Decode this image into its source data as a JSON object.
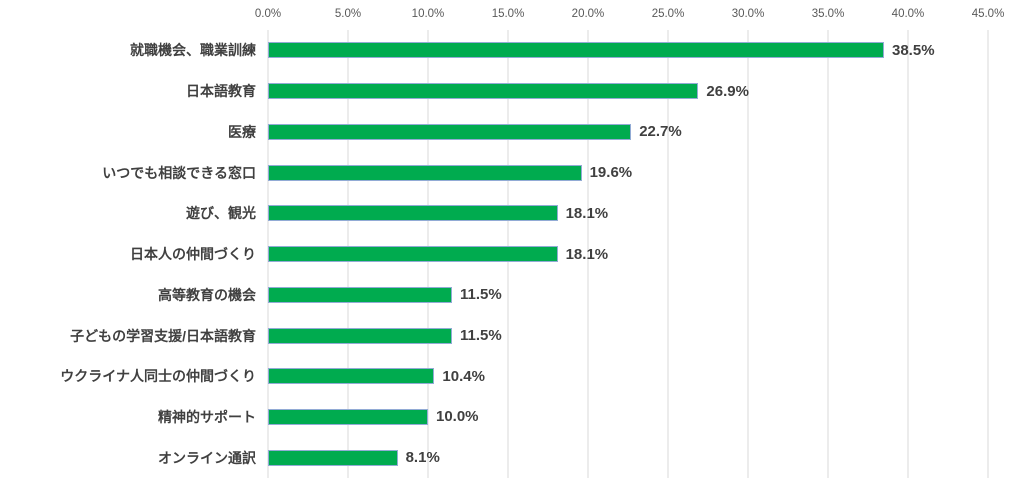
{
  "colors": {
    "bar_fill": "#00AB4F",
    "bar_border": "#92ABD5",
    "grid": "#D9D9D9",
    "axis_label": "#595959",
    "text": "#404040",
    "background": "#FFFFFF"
  },
  "axis": {
    "ticks": [
      "0.0%",
      "5.0%",
      "10.0%",
      "15.0%",
      "20.0%",
      "25.0%",
      "30.0%",
      "35.0%",
      "40.0%",
      "45.0%"
    ],
    "min": 0,
    "max": 45,
    "step": 5,
    "position": "top"
  },
  "chart_data": {
    "type": "bar",
    "orientation": "horizontal",
    "title": "",
    "xlabel": "",
    "ylabel": "",
    "xlim": [
      0,
      45
    ],
    "grid": true,
    "legend": false,
    "categories": [
      "就職機会、職業訓練",
      "日本語教育",
      "医療",
      "いつでも相談できる窓口",
      "遊び、観光",
      "日本人の仲間づくり",
      "高等教育の機会",
      "子どもの学習支援/日本語教育",
      "ウクライナ人同士の仲間づくり",
      "精神的サポート",
      "オンライン通訳"
    ],
    "values": [
      38.5,
      26.9,
      22.7,
      19.6,
      18.1,
      18.1,
      11.5,
      11.5,
      10.4,
      10.0,
      8.1
    ],
    "value_labels": [
      "38.5%",
      "26.9%",
      "22.7%",
      "19.6%",
      "18.1%",
      "18.1%",
      "11.5%",
      "11.5%",
      "10.4%",
      "10.0%",
      "8.1%"
    ]
  }
}
